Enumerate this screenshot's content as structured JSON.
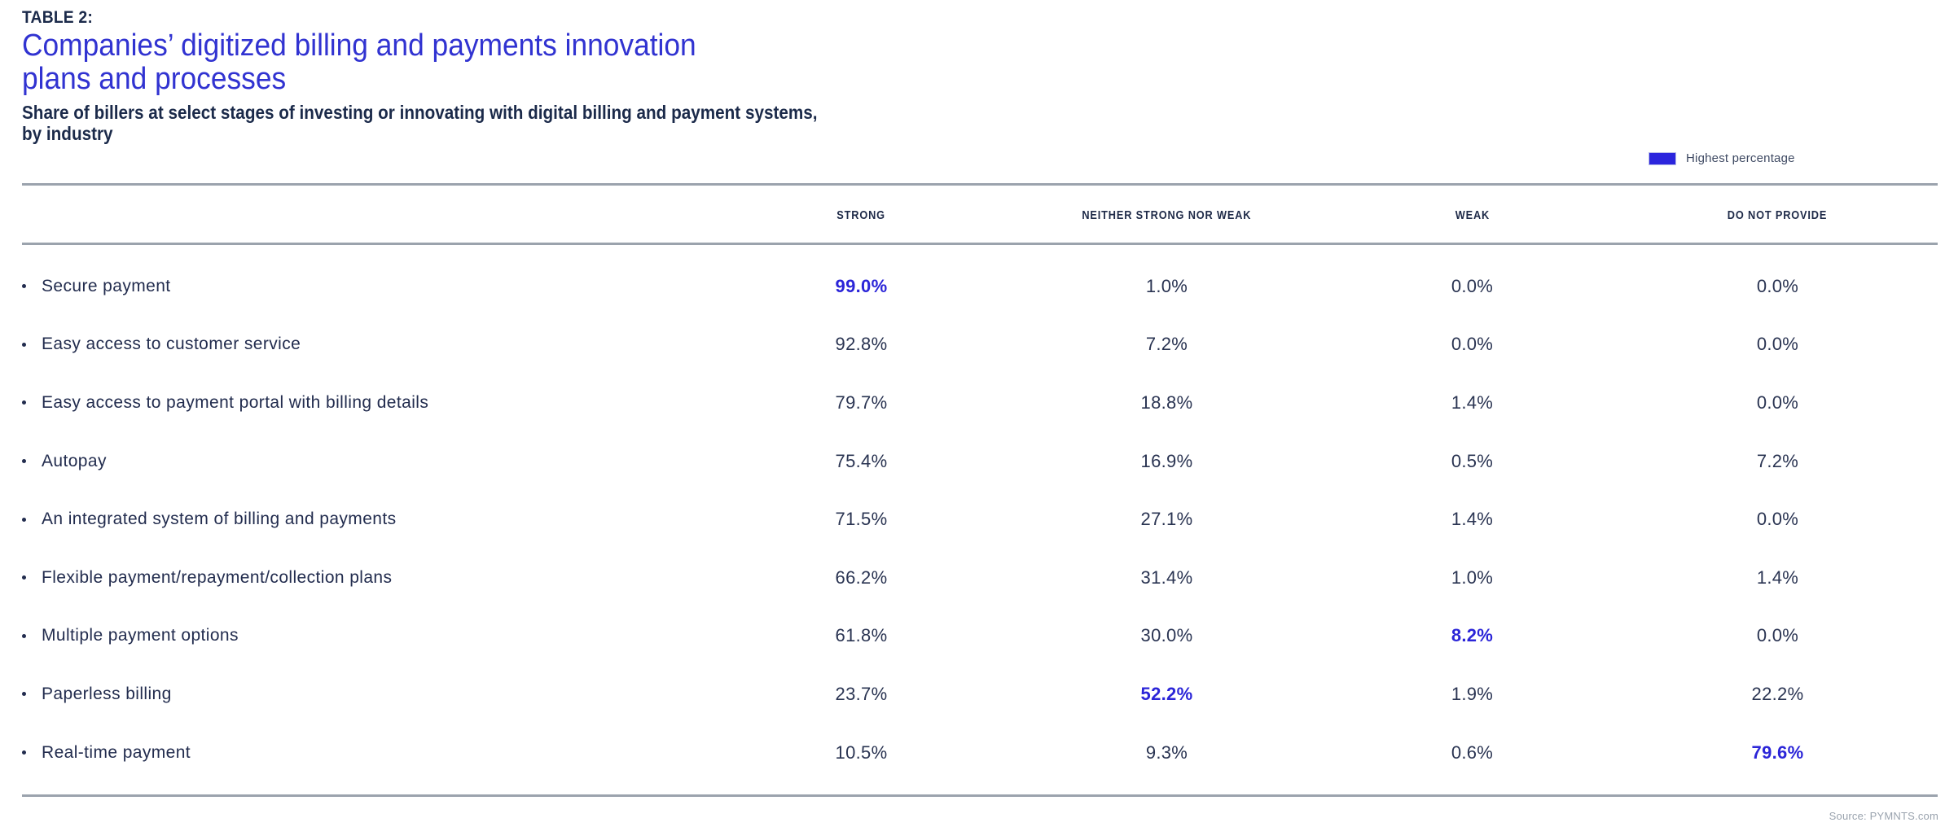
{
  "page": {
    "table_label": "TABLE 2:",
    "title_lines": [
      "Companies’ digitized billing and payments innovation",
      "plans and processes"
    ],
    "subtitle_lines": [
      "Share of billers at select stages of investing or innovating with digital billing and payment systems,",
      "by industry"
    ],
    "source": "Source: PYMNTS.com"
  },
  "legend": {
    "label": "Highest percentage"
  },
  "colors": {
    "accent_blue": "#2b25dd",
    "title_blue": "#3133d1",
    "navy_text": "#1b2a4a",
    "body_text": "#2a3452",
    "rule_gray": "#9ba3ad",
    "source_gray": "#9aa3ae"
  },
  "table": {
    "columns": [
      "STRONG",
      "NEITHER STRONG NOR WEAK",
      "WEAK",
      "DO NOT PROVIDE"
    ],
    "rows": [
      {
        "label": "Secure payment",
        "values": [
          "99.0%",
          "1.0%",
          "0.0%",
          "0.0%"
        ],
        "highlight": 0
      },
      {
        "label": "Easy access to customer service",
        "values": [
          "92.8%",
          "7.2%",
          "0.0%",
          "0.0%"
        ],
        "highlight": -1
      },
      {
        "label": "Easy access to payment portal with billing details",
        "values": [
          "79.7%",
          "18.8%",
          "1.4%",
          "0.0%"
        ],
        "highlight": -1
      },
      {
        "label": "Autopay",
        "values": [
          "75.4%",
          "16.9%",
          "0.5%",
          "7.2%"
        ],
        "highlight": -1
      },
      {
        "label": "An integrated system of billing and payments",
        "values": [
          "71.5%",
          "27.1%",
          "1.4%",
          "0.0%"
        ],
        "highlight": -1
      },
      {
        "label": "Flexible payment/repayment/collection plans",
        "values": [
          "66.2%",
          "31.4%",
          "1.0%",
          "1.4%"
        ],
        "highlight": -1
      },
      {
        "label": "Multiple payment options",
        "values": [
          "61.8%",
          "30.0%",
          "8.2%",
          "0.0%"
        ],
        "highlight": 2
      },
      {
        "label": "Paperless billing",
        "values": [
          "23.7%",
          "52.2%",
          "1.9%",
          "22.2%"
        ],
        "highlight": 1
      },
      {
        "label": "Real-time payment",
        "values": [
          "10.5%",
          "9.3%",
          "0.6%",
          "79.6%"
        ],
        "highlight": 3
      }
    ]
  },
  "chart_data": {
    "type": "table",
    "title": "Companies’ digitized billing and payments innovation plans and processes",
    "subtitle": "Share of billers at select stages of investing or innovating with digital billing and payment systems, by industry",
    "columns": [
      "STRONG",
      "NEITHER STRONG NOR WEAK",
      "WEAK",
      "DO NOT PROVIDE"
    ],
    "row_labels": [
      "Secure payment",
      "Easy access to customer service",
      "Easy access to payment portal with billing details",
      "Autopay",
      "An integrated system of billing and payments",
      "Flexible payment/repayment/collection plans",
      "Multiple payment options",
      "Paperless billing",
      "Real-time payment"
    ],
    "values_pct": [
      [
        99.0,
        1.0,
        0.0,
        0.0
      ],
      [
        92.8,
        7.2,
        0.0,
        0.0
      ],
      [
        79.7,
        18.8,
        1.4,
        0.0
      ],
      [
        75.4,
        16.9,
        0.5,
        7.2
      ],
      [
        71.5,
        27.1,
        1.4,
        0.0
      ],
      [
        66.2,
        31.4,
        1.0,
        1.4
      ],
      [
        61.8,
        30.0,
        8.2,
        0.0
      ],
      [
        23.7,
        52.2,
        1.9,
        22.2
      ],
      [
        10.5,
        9.3,
        0.6,
        79.6
      ]
    ],
    "legend": [
      {
        "label": "Highest percentage",
        "color": "#2b25dd"
      }
    ],
    "highlight_rule": "highest value in each column rendered bold blue",
    "source": "Source: PYMNTS.com"
  }
}
